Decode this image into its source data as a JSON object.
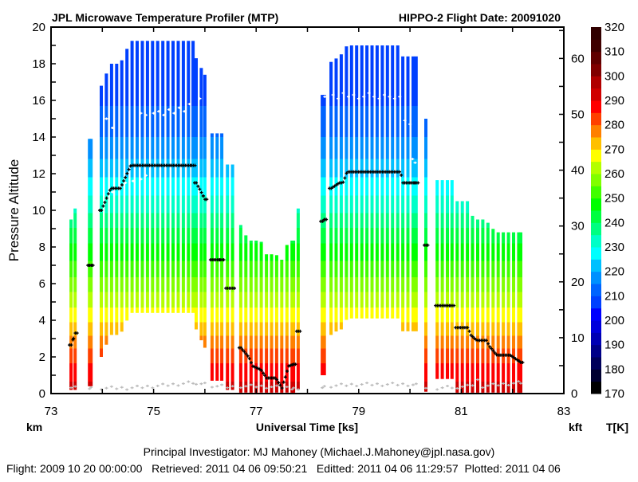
{
  "chart_data": {
    "type": "heatmap",
    "title": "JPL Microwave Temperature Profiler (MTP)",
    "subtitle": "HIPPO-2  Flight Date: 20091020",
    "xlabel": "Universal Time [ks]",
    "ylabel": "Pressure Altitude",
    "ylabel_left_unit": "km",
    "ylabel_right_unit": "kft",
    "colorbar_label": "T[K]",
    "xlim": [
      73,
      83
    ],
    "ylim": [
      0,
      20
    ],
    "x_ticks": [
      "73",
      "75",
      "77",
      "79",
      "81",
      "83"
    ],
    "y_ticks": [
      "0",
      "2",
      "4",
      "6",
      "8",
      "10",
      "12",
      "14",
      "16",
      "18",
      "20"
    ],
    "y2_ticks": [
      "0",
      "10",
      "20",
      "30",
      "40",
      "50",
      "60"
    ],
    "colorbar": {
      "range": [
        170,
        320
      ],
      "step": 5,
      "ticks": [
        "170",
        "180",
        "190",
        "200",
        "210",
        "220",
        "230",
        "240",
        "250",
        "260",
        "270",
        "280",
        "290",
        "300",
        "310",
        "320"
      ],
      "colors": [
        "#000000",
        "#000030",
        "#00005a",
        "#000088",
        "#0000b4",
        "#0000dc",
        "#0000ff",
        "#0040ff",
        "#0064ff",
        "#0090ff",
        "#00c0ff",
        "#00ffff",
        "#00ffc8",
        "#00ff80",
        "#00ff40",
        "#00ff00",
        "#40ff00",
        "#80ff00",
        "#b4ff00",
        "#ffff00",
        "#ffc000",
        "#ff8000",
        "#ff4000",
        "#ff0000",
        "#d00000",
        "#b00000",
        "#800000",
        "#600000",
        "#400000",
        "#300000"
      ]
    },
    "temperature_profile": {
      "altitude_km": [
        0,
        1,
        2,
        3,
        4,
        5,
        6,
        7,
        8,
        9,
        10,
        11,
        12,
        13,
        14,
        15,
        16,
        17,
        18,
        19.5
      ],
      "temperature_K": [
        293,
        288,
        283,
        276,
        269,
        263,
        257,
        251,
        246,
        240,
        234,
        229,
        224,
        219,
        215,
        212,
        209,
        208,
        207,
        207
      ]
    },
    "scan_step_ks": 0.1,
    "segments": [
      {
        "t": [
          73.39,
          73.47
        ],
        "top": [
          9.5,
          10.1
        ],
        "bottom": [
          0.2,
          0.2
        ],
        "flight_alt": [
          2.65,
          3.3
        ]
      },
      {
        "t": [
          73.75,
          73.78
        ],
        "top": [
          13.9,
          13.9
        ],
        "bottom": [
          0.4,
          0.4
        ],
        "flight_alt": [
          7.0,
          7.0
        ]
      },
      {
        "t": [
          73.98,
          74.16,
          74.35,
          74.55,
          75.77
        ],
        "top": [
          16.8,
          18.0,
          18.0,
          19.25,
          19.25
        ],
        "bottom": [
          2.0,
          3.2,
          3.2,
          4.4,
          4.4
        ],
        "flight_alt": [
          10.0,
          11.2,
          11.2,
          12.45,
          12.45
        ]
      },
      {
        "t": [
          75.83,
          76.0
        ],
        "top": [
          18.3,
          17.4
        ],
        "bottom": [
          3.5,
          2.5
        ],
        "flight_alt": [
          11.5,
          10.6
        ]
      },
      {
        "t": [
          76.14,
          76.33
        ],
        "top": [
          14.2,
          14.2
        ],
        "bottom": [
          0.7,
          0.7
        ],
        "flight_alt": [
          7.3,
          7.3
        ]
      },
      {
        "t": [
          76.44,
          76.55
        ],
        "top": [
          12.5,
          12.5
        ],
        "bottom": [
          0.2,
          0.2
        ],
        "flight_alt": [
          5.75,
          5.75
        ]
      },
      {
        "t": [
          76.7,
          76.85,
          76.93,
          77.09,
          77.2,
          77.38,
          77.5,
          77.63,
          77.73
        ],
        "top": [
          9.2,
          8.35,
          8.35,
          8.35,
          7.6,
          7.6,
          7.3,
          8.35,
          8.35
        ],
        "bottom": [
          0.05,
          0.05,
          0.05,
          0.05,
          0.05,
          0.05,
          0.05,
          0.05,
          0.05
        ],
        "flight_alt": [
          2.5,
          2.0,
          1.5,
          1.3,
          0.85,
          0.85,
          0.3,
          1.5,
          1.6
        ]
      },
      {
        "t": [
          77.82,
          77.84
        ],
        "top": [
          10.1,
          10.1
        ],
        "bottom": [
          0.2,
          0.2
        ],
        "flight_alt": [
          3.4,
          3.4
        ]
      },
      {
        "t": [
          78.29,
          78.33
        ],
        "top": [
          16.3,
          16.3
        ],
        "bottom": [
          1.0,
          1.0
        ],
        "flight_alt": [
          9.4,
          9.5
        ]
      },
      {
        "t": [
          78.46,
          78.62,
          78.69,
          78.77,
          79.81,
          79.86,
          80.12
        ],
        "top": [
          18.1,
          18.4,
          18.6,
          19.0,
          19.0,
          18.4,
          18.4
        ],
        "bottom": [
          3.2,
          3.5,
          3.5,
          4.1,
          4.1,
          3.4,
          3.4
        ],
        "flight_alt": [
          11.2,
          11.5,
          11.5,
          12.1,
          12.1,
          11.5,
          11.5
        ]
      },
      {
        "t": [
          80.31,
          80.32
        ],
        "top": [
          15.0,
          15.0
        ],
        "bottom": [
          0.1,
          0.1
        ],
        "flight_alt": [
          8.1,
          8.1
        ]
      },
      {
        "t": [
          80.53,
          80.82
        ],
        "top": [
          11.65,
          11.65
        ],
        "bottom": [
          0.8,
          0.8
        ],
        "flight_alt": [
          4.8,
          4.8
        ]
      },
      {
        "t": [
          80.92,
          81.13,
          81.18,
          81.3,
          81.49,
          81.54,
          81.69,
          81.95,
          82.16
        ],
        "top": [
          10.5,
          10.5,
          9.8,
          9.5,
          9.5,
          9.2,
          8.8,
          8.8,
          8.8
        ],
        "bottom": [
          0.05,
          0.05,
          0.05,
          0.05,
          0.05,
          0.05,
          0.05,
          0.05,
          0.05
        ],
        "flight_alt": [
          3.6,
          3.6,
          3.2,
          2.9,
          2.9,
          2.6,
          2.1,
          2.1,
          1.7
        ]
      }
    ],
    "tropopause": [
      [
        74.08,
        15.0
      ],
      [
        74.2,
        14.5
      ],
      [
        74.75,
        15.3
      ],
      [
        74.85,
        15.2
      ],
      [
        75.0,
        15.3
      ],
      [
        75.1,
        15.4
      ],
      [
        75.2,
        15.2
      ],
      [
        75.3,
        15.5
      ],
      [
        75.4,
        15.3
      ],
      [
        75.5,
        15.6
      ],
      [
        75.6,
        15.4
      ],
      [
        75.7,
        15.8
      ],
      [
        75.9,
        16.1
      ],
      [
        74.2,
        11.0
      ],
      [
        74.35,
        11.3
      ],
      [
        74.45,
        11.5
      ],
      [
        74.6,
        11.6
      ],
      [
        74.75,
        11.7
      ],
      [
        74.85,
        11.9
      ],
      [
        78.34,
        16.2
      ],
      [
        78.5,
        16.3
      ],
      [
        78.6,
        16.1
      ],
      [
        78.7,
        16.4
      ],
      [
        78.8,
        16.2
      ],
      [
        78.9,
        16.3
      ],
      [
        79.0,
        16.1
      ],
      [
        79.1,
        16.2
      ],
      [
        79.2,
        16.4
      ],
      [
        79.3,
        16.2
      ],
      [
        79.4,
        16.1
      ],
      [
        79.5,
        16.3
      ],
      [
        79.6,
        16.2
      ],
      [
        79.7,
        16.1
      ],
      [
        79.8,
        16.2
      ],
      [
        79.9,
        14.9
      ],
      [
        80.0,
        14.7
      ],
      [
        80.05,
        12.8
      ],
      [
        80.1,
        12.6
      ]
    ],
    "surface_altitude": [
      [
        73.4,
        0.4
      ],
      [
        74.0,
        0.3
      ],
      [
        74.5,
        0.3
      ],
      [
        75.0,
        0.4
      ],
      [
        75.8,
        0.6
      ],
      [
        76.2,
        0.4
      ],
      [
        77.0,
        0.4
      ],
      [
        77.8,
        0.3
      ],
      [
        78.3,
        0.4
      ],
      [
        79.0,
        0.5
      ],
      [
        80.0,
        0.5
      ],
      [
        80.5,
        0.3
      ],
      [
        81.2,
        0.4
      ],
      [
        81.3,
        0.8
      ],
      [
        81.4,
        0.4
      ],
      [
        82.16,
        0.6
      ]
    ]
  },
  "footer": {
    "investigator": "Principal Investigator: MJ Mahoney (Michael.J.Mahoney@jpl.nasa.gov)",
    "dates": "Flight: 2009 10 20 00:00:00   Retrieved: 2011 04 06 09:50:21   Editted: 2011 04 06 11:29:57  Plotted: 2011 04 06"
  }
}
